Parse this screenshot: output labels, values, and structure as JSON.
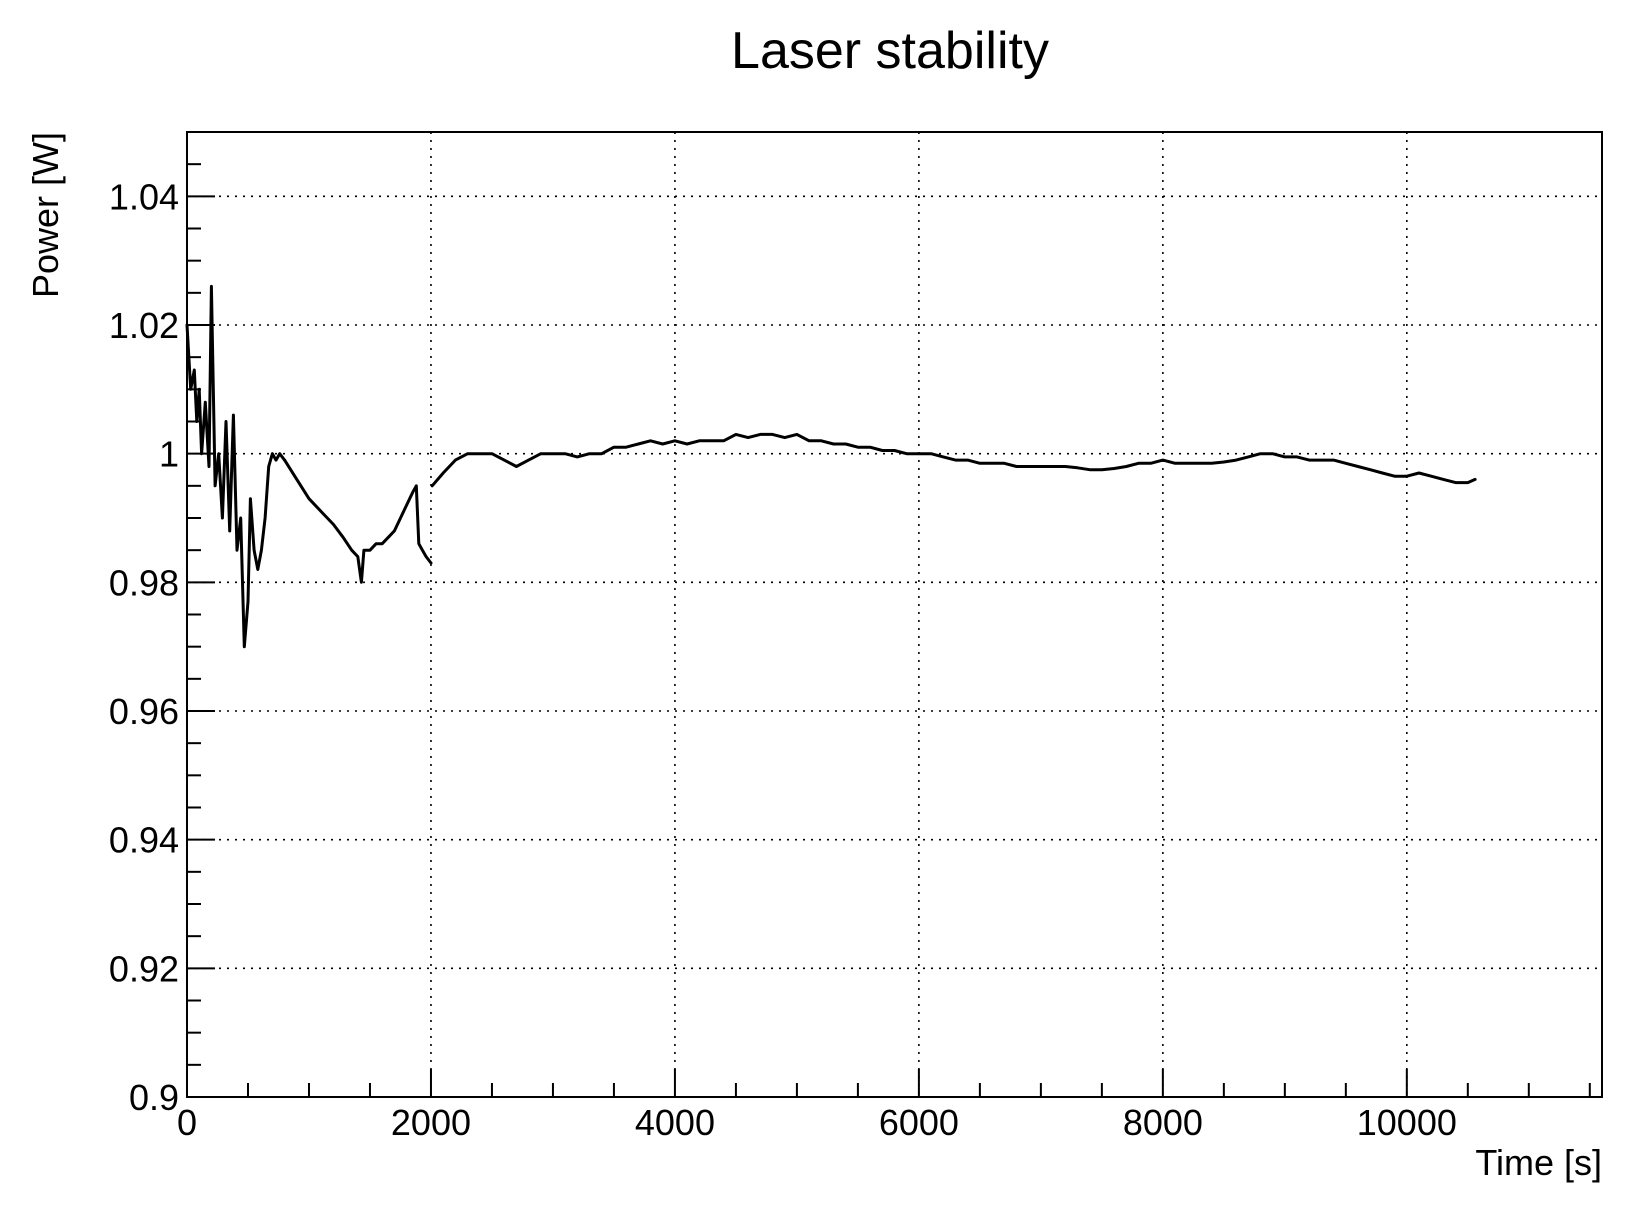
{
  "chart_data": {
    "type": "line",
    "title": "Laser stability",
    "xlabel": "Time [s]",
    "ylabel": "Power [W]",
    "xlim": [
      0,
      11600
    ],
    "ylim": [
      0.9,
      1.05
    ],
    "x_ticks": [
      0,
      2000,
      4000,
      6000,
      8000,
      10000
    ],
    "x_tick_labels": [
      "0",
      "2000",
      "4000",
      "6000",
      "8000",
      "10000"
    ],
    "x_minor_step": 500,
    "y_ticks": [
      0.9,
      0.92,
      0.94,
      0.96,
      0.98,
      1,
      1.02,
      1.04
    ],
    "y_tick_labels": [
      "0.9",
      "0.92",
      "0.94",
      "0.96",
      "0.98",
      "1",
      "1.02",
      "1.04"
    ],
    "y_minor_step": 0.005,
    "grid": true,
    "line_color": "#000000",
    "series": [
      {
        "segments": [
          {
            "x": [
              0,
              30,
              60,
              80,
              100,
              120,
              150,
              180,
              200,
              230,
              260,
              290,
              320,
              350,
              380,
              410,
              440,
              470,
              500,
              520,
              550,
              580,
              610,
              640,
              670,
              700,
              730,
              760,
              800
            ],
            "y": [
              1.02,
              1.01,
              1.013,
              1.005,
              1.01,
              1.0,
              1.008,
              0.998,
              1.026,
              0.995,
              1.0,
              0.99,
              1.005,
              0.988,
              1.006,
              0.985,
              0.99,
              0.97,
              0.977,
              0.993,
              0.985,
              0.982,
              0.985,
              0.99,
              0.998,
              1.0,
              0.999,
              1.0,
              0.999
            ]
          },
          {
            "x": [
              800,
              900,
              1000,
              1100,
              1200,
              1280,
              1350,
              1400,
              1430,
              1450,
              1500,
              1550,
              1600,
              1650,
              1700,
              1750,
              1800,
              1850,
              1880,
              1900,
              1930,
              1960,
              2000
            ],
            "y": [
              0.999,
              0.996,
              0.993,
              0.991,
              0.989,
              0.987,
              0.985,
              0.984,
              0.98,
              0.985,
              0.985,
              0.986,
              0.986,
              0.987,
              0.988,
              0.99,
              0.992,
              0.994,
              0.995,
              0.986,
              0.985,
              0.984,
              0.983
            ]
          },
          {
            "x": [
              2010,
              2100,
              2200,
              2300,
              2400,
              2500,
              2600,
              2700,
              2800,
              2900,
              3000,
              3100,
              3200,
              3300,
              3400,
              3500,
              3600,
              3700,
              3800,
              3900,
              4000,
              4100,
              4200,
              4300,
              4400,
              4500,
              4600,
              4700,
              4800,
              4900,
              5000,
              5100,
              5200,
              5300,
              5400,
              5500,
              5600,
              5700,
              5800,
              5900,
              6000,
              6100,
              6200,
              6300,
              6400,
              6500,
              6600,
              6700,
              6800,
              6900,
              7000,
              7100,
              7200,
              7300,
              7400,
              7500,
              7600,
              7700,
              7800,
              7900,
              8000,
              8100,
              8200,
              8300,
              8400,
              8500,
              8600,
              8700,
              8800,
              8900,
              9000,
              9100,
              9200,
              9300,
              9400,
              9500,
              9600,
              9700,
              9800,
              9900,
              10000,
              10100,
              10200,
              10300,
              10400,
              10500,
              10560
            ],
            "y": [
              0.995,
              0.997,
              0.999,
              1.0,
              1.0,
              1.0,
              0.999,
              0.998,
              0.999,
              1.0,
              1.0,
              1.0,
              0.9995,
              1.0,
              1.0,
              1.001,
              1.001,
              1.0015,
              1.002,
              1.0015,
              1.002,
              1.0015,
              1.002,
              1.002,
              1.002,
              1.003,
              1.0025,
              1.003,
              1.003,
              1.0025,
              1.003,
              1.002,
              1.002,
              1.0015,
              1.0015,
              1.001,
              1.001,
              1.0005,
              1.0005,
              1.0,
              1.0,
              1.0,
              0.9995,
              0.999,
              0.999,
              0.9985,
              0.9985,
              0.9985,
              0.998,
              0.998,
              0.998,
              0.998,
              0.998,
              0.9978,
              0.9975,
              0.9975,
              0.9977,
              0.998,
              0.9985,
              0.9985,
              0.999,
              0.9985,
              0.9985,
              0.9985,
              0.9985,
              0.9987,
              0.999,
              0.9995,
              1.0,
              1.0,
              0.9995,
              0.9995,
              0.999,
              0.999,
              0.999,
              0.9985,
              0.998,
              0.9975,
              0.997,
              0.9965,
              0.9965,
              0.997,
              0.9965,
              0.996,
              0.9955,
              0.9955,
              0.996
            ]
          }
        ]
      }
    ]
  }
}
